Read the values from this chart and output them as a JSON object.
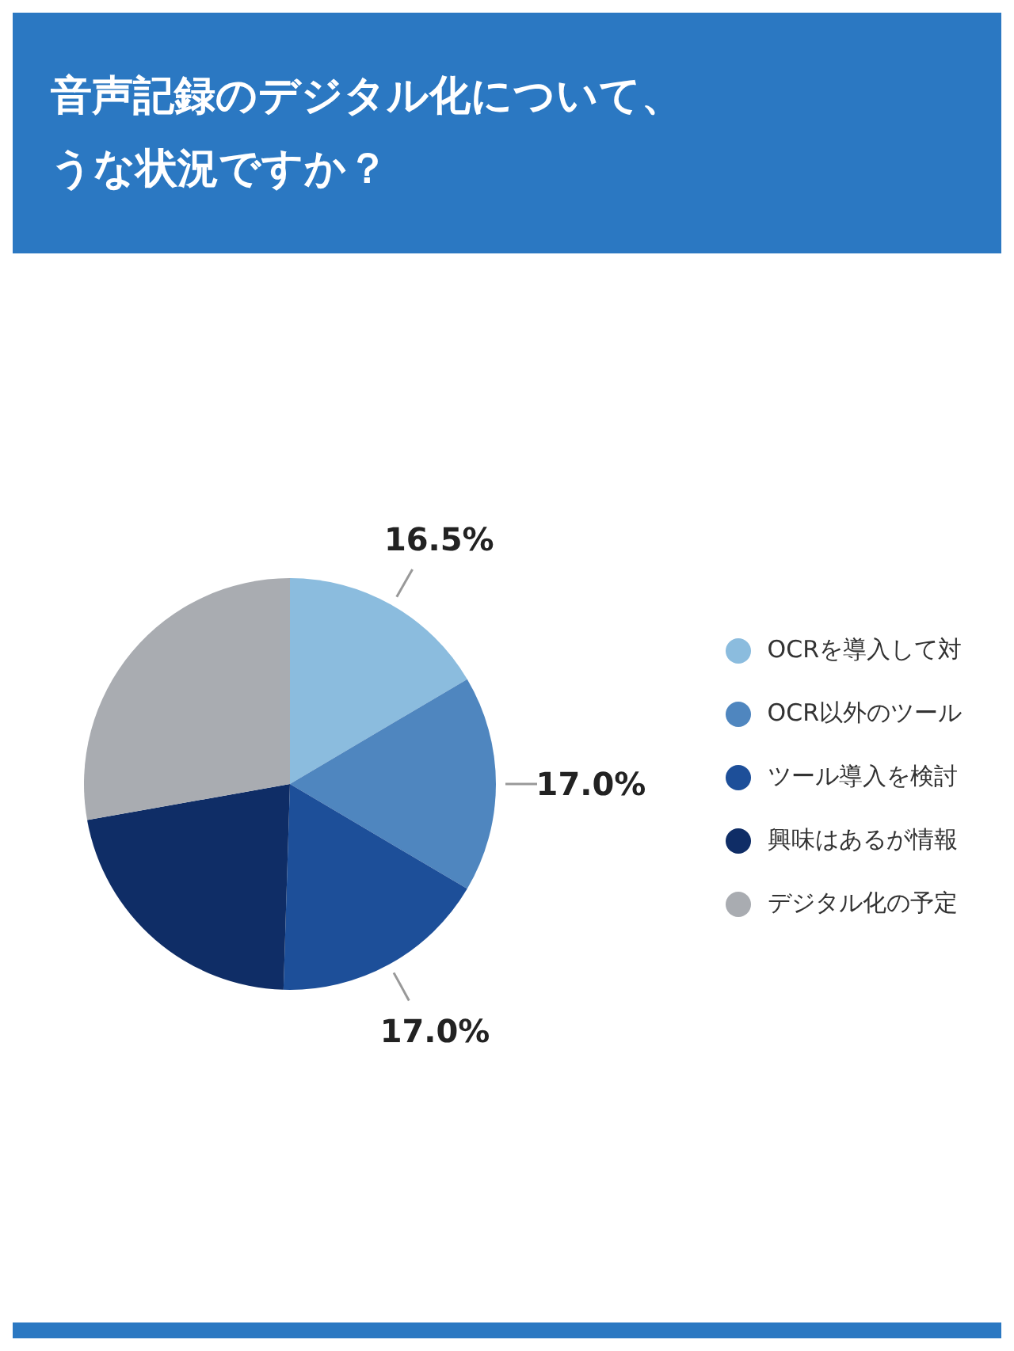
{
  "chart_data": {
    "type": "pie",
    "title": "音声記録のデジタル化について、うな状況ですか？",
    "categories": [
      "OCRを導入して対",
      "OCR以外のツール",
      "ツール導入を検討",
      "興味はあるが情報",
      "デジタル化の予定"
    ],
    "values": [
      16.5,
      17.0,
      17.0,
      21.7,
      27.8
    ],
    "colors": [
      "#8bbcde",
      "#4f86bf",
      "#1d4f99",
      "#0f2d66",
      "#a9acb1"
    ],
    "value_labels": [
      "16.5%",
      "17.0%",
      "17.0%",
      null,
      null
    ],
    "legend": "right"
  }
}
